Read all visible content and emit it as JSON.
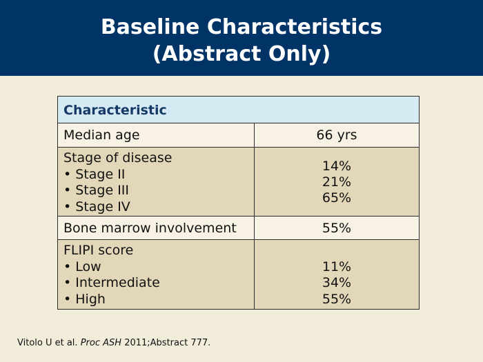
{
  "slide": {
    "title_line1": "Baseline Characteristics",
    "title_line2": "(Abstract Only)",
    "colors": {
      "title_bar": "#003366",
      "background": "#f2ecda",
      "header_row": "#d6eaf3",
      "header_text": "#163a66"
    }
  },
  "table": {
    "header": "Characteristic",
    "rows": [
      {
        "label": "Median age",
        "items": [],
        "values": [
          "66 yrs"
        ]
      },
      {
        "label": "Stage of disease",
        "items": [
          "Stage II",
          "Stage III",
          "Stage IV"
        ],
        "values": [
          "14%",
          "21%",
          "65%"
        ]
      },
      {
        "label": "Bone marrow involvement",
        "items": [],
        "values": [
          "55%"
        ]
      },
      {
        "label": "FLIPI score",
        "items": [
          "Low",
          "Intermediate",
          "High"
        ],
        "values": [
          "11%",
          "34%",
          "55%"
        ]
      }
    ]
  },
  "citation": {
    "authors": "Vitolo U et al.",
    "journal": "Proc ASH",
    "rest": "2011;Abstract 777."
  }
}
